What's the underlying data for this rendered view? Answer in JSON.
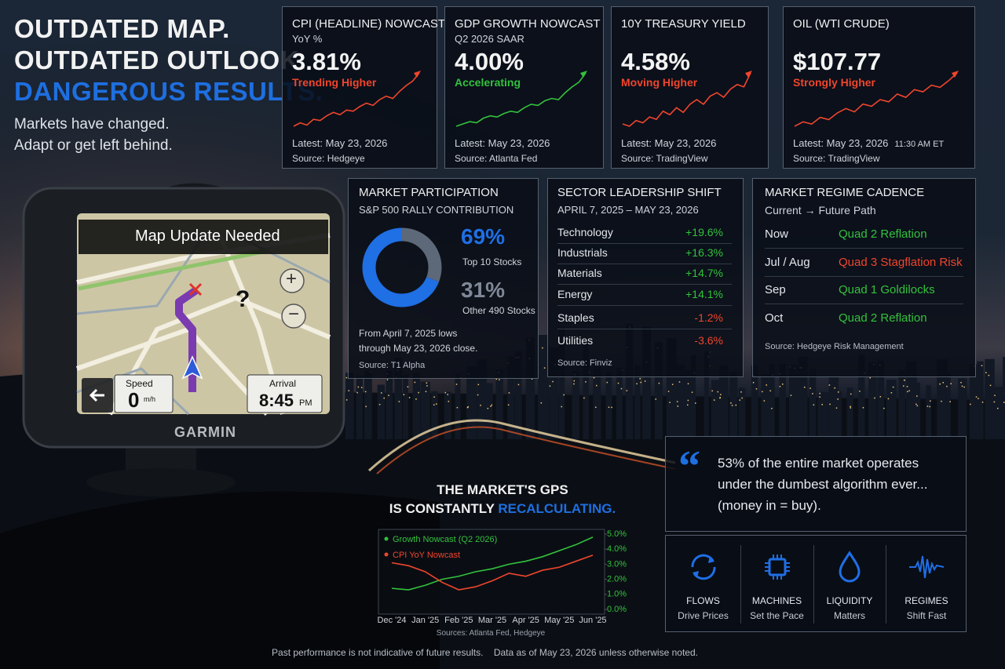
{
  "headline": {
    "lines": [
      "OUTDATED MAP.",
      "OUTDATED OUTLOOK.",
      "DANGEROUS RESULTS."
    ],
    "subtitle": [
      "Markets have changed.",
      "Adapt or get left behind."
    ]
  },
  "gps": {
    "banner": "Map Update Needed",
    "map_marker": "?",
    "zoom": [
      "+",
      "−"
    ],
    "speed_label": "Speed",
    "speed_value": "0",
    "speed_unit": "m/h",
    "arrival_label": "Arrival",
    "arrival_time": "8:45",
    "arrival_period": "PM",
    "brand": "GARMIN"
  },
  "kpi_cards": [
    {
      "title": "CPI (HEADLINE) NOWCAST",
      "subtitle": "YoY %",
      "value": "3.81%",
      "trend": "Trending Higher",
      "color": "#f0452c",
      "latest": "Latest: May 23, 2026",
      "source": "Source: Hedgeye",
      "spark": [
        1.0,
        1.3,
        1.1,
        1.6,
        1.5,
        1.9,
        2.2,
        2.0,
        2.4,
        2.3,
        2.7,
        3.0,
        2.8,
        3.3,
        3.6,
        3.4,
        4.0,
        4.5,
        4.9,
        5.6
      ]
    },
    {
      "title": "GDP GROWTH NOWCAST",
      "subtitle": "Q2 2026  SAAR",
      "value": "4.00%",
      "trend": "Accelerating",
      "color": "#33c23c",
      "latest": "Latest: May 23, 2026",
      "source": "Source: Atlanta Fed",
      "spark": [
        1.0,
        1.2,
        1.4,
        1.3,
        1.7,
        1.9,
        1.8,
        2.1,
        2.3,
        2.2,
        2.6,
        2.9,
        2.8,
        3.2,
        3.4,
        3.3,
        3.9,
        4.4,
        4.8,
        5.6
      ]
    },
    {
      "title": "10Y TREASURY YIELD",
      "value": "4.58%",
      "trend": "Moving Higher",
      "color": "#f0452c",
      "latest": "Latest: May 23, 2026",
      "source": "Source: TradingView",
      "spark": [
        1.2,
        1.0,
        1.5,
        1.3,
        1.8,
        1.6,
        2.3,
        2.0,
        2.6,
        2.2,
        2.9,
        3.3,
        2.9,
        3.6,
        3.9,
        3.5,
        4.2,
        4.6,
        4.4,
        5.6
      ]
    },
    {
      "title": "OIL (WTI CRUDE)",
      "value": "$107.77",
      "trend": "Strongly Higher",
      "color": "#f0452c",
      "latest": "Latest: May 23, 2026",
      "time": "11:30 AM ET",
      "source": "Source: TradingView",
      "spark": [
        1.0,
        1.4,
        1.2,
        1.8,
        1.6,
        2.2,
        2.6,
        2.3,
        3.0,
        2.8,
        3.4,
        3.2,
        3.9,
        3.6,
        4.3,
        4.1,
        4.7,
        4.5,
        5.1,
        5.8
      ]
    }
  ],
  "participation": {
    "title": "MARKET PARTICIPATION",
    "subtitle": "S&P 500 RALLY CONTRIBUTION",
    "donut": {
      "type": "pie",
      "values": [
        69,
        31
      ],
      "value_labels": [
        "69%",
        "31%"
      ],
      "labels": [
        "Top 10 Stocks",
        "Other 490 Stocks"
      ],
      "colors": [
        "#1f6fe5",
        "#5d6878"
      ]
    },
    "note": [
      "From April 7, 2025 lows",
      "through May 23, 2026 close."
    ],
    "source": "Source: T1 Alpha"
  },
  "sectors": {
    "title": "SECTOR LEADERSHIP SHIFT",
    "subtitle": "APRIL 7, 2025 – MAY 23, 2026",
    "rows": [
      [
        "Technology",
        "+19.6%"
      ],
      [
        "Industrials",
        "+16.3%"
      ],
      [
        "Materials",
        "+14.7%"
      ],
      [
        "Energy",
        "+14.1%"
      ],
      [
        "Staples",
        "-1.2%"
      ],
      [
        "Utilities",
        "-3.6%"
      ]
    ],
    "source": "Source: Finviz"
  },
  "regime": {
    "title": "MARKET REGIME CADENCE",
    "subtitle": "Current → Future Path",
    "rows": [
      {
        "period": "Now",
        "regime": "Quad 2 Reflation",
        "color": "#33c23c"
      },
      {
        "period": "Jul / Aug",
        "regime": "Quad 3 Stagflation Risk",
        "color": "#f0452c"
      },
      {
        "period": "Sep",
        "regime": "Quad 1 Goldilocks",
        "color": "#33c23c"
      },
      {
        "period": "Oct",
        "regime": "Quad 2 Reflation",
        "color": "#33c23c"
      }
    ],
    "source": "Source: Hedgeye Risk Management"
  },
  "chart_data": {
    "type": "line",
    "title": [
      "THE MARKET'S GPS",
      "IS CONSTANTLY ",
      "RECALCULATING."
    ],
    "categories": [
      "Dec '24",
      null,
      "Jan '25",
      null,
      "Feb '25",
      null,
      "Mar '25",
      null,
      "Apr '25",
      null,
      "May '25",
      null,
      "Jun '25"
    ],
    "series": [
      {
        "name": "Growth Nowcast (Q2 2026)",
        "color": "#33c23c",
        "values": [
          1.4,
          1.3,
          1.6,
          2.0,
          2.2,
          2.5,
          2.7,
          3.0,
          3.2,
          3.5,
          3.9,
          4.3,
          4.8
        ]
      },
      {
        "name": "CPI YoY Nowcast",
        "color": "#f0452c",
        "values": [
          3.1,
          2.9,
          2.5,
          1.8,
          1.3,
          1.5,
          1.9,
          2.4,
          2.2,
          2.6,
          2.8,
          3.2,
          3.6
        ]
      }
    ],
    "ylim": [
      0,
      5
    ],
    "yticks": [
      {
        "value": 0,
        "label": "0.0%"
      },
      {
        "value": 1,
        "label": "1.0%"
      },
      {
        "value": 2,
        "label": "2.0%"
      },
      {
        "value": 3,
        "label": "3.0%"
      },
      {
        "value": 4,
        "label": "4.0%"
      },
      {
        "value": 5,
        "label": "5.0%"
      }
    ],
    "ytick_color": "#33c23c",
    "source": "Sources: Atlanta Fed, Hedgeye"
  },
  "quote": {
    "mark": "“",
    "lines": [
      "53% of the entire market operates",
      "under the dumbest algorithm ever...",
      "(money in = buy)."
    ]
  },
  "pillars": [
    {
      "label": "FLOWS",
      "sub": "Drive Prices"
    },
    {
      "label": "MACHINES",
      "sub": "Set the Pace"
    },
    {
      "label": "LIQUIDITY",
      "sub": "Matters"
    },
    {
      "label": "REGIMES",
      "sub": "Shift Fast"
    }
  ],
  "footer": "Past performance is not indicative of future results.    Data as of May 23, 2026 unless otherwise noted."
}
